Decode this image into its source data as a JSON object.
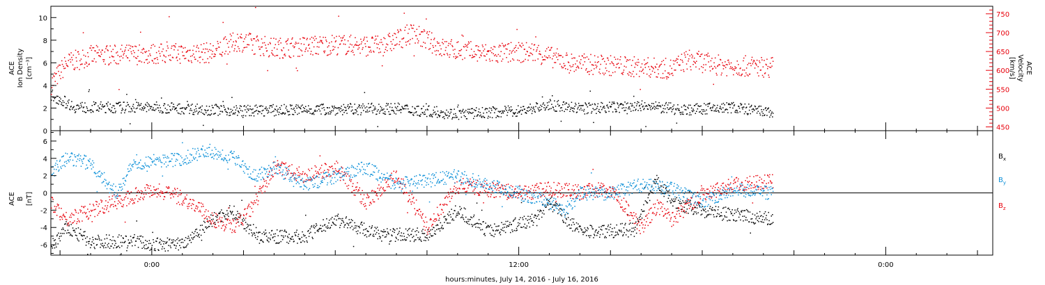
{
  "colors": {
    "black": "#000000",
    "red": "#e8000b",
    "blue": "#0a8fd8"
  },
  "x_axis": {
    "label": "hours:minutes, July 14, 2016 - July 16, 2016",
    "ticks": [
      {
        "t": 0,
        "label": "0:00"
      },
      {
        "t": 12,
        "label": "12:00"
      },
      {
        "t": 24,
        "label": "0:00"
      }
    ],
    "range": [
      -3.3,
      27.5
    ]
  },
  "chart_data": [
    {
      "type": "scatter",
      "panel": "top",
      "left_axis": {
        "label_lines": [
          "ACE",
          "Ion Density",
          "[cm⁻³]"
        ],
        "ylim": [
          0,
          11
        ],
        "ticks": [
          0,
          2,
          4,
          6,
          8,
          10
        ]
      },
      "right_axis": {
        "label_lines": [
          "ACE",
          "Velocity",
          "[km/s]"
        ],
        "ylim": [
          440,
          770
        ],
        "ticks": [
          450,
          500,
          550,
          600,
          650,
          700,
          750
        ]
      },
      "series": [
        {
          "key": "density",
          "axis": "left",
          "color": "#000000",
          "x_range": [
            -3.3,
            20.3
          ],
          "segments": [
            [
              -3.3,
              3.2
            ],
            [
              -2.5,
              2.1
            ],
            [
              0,
              2.1
            ],
            [
              3,
              1.8
            ],
            [
              5,
              1.9
            ],
            [
              8,
              2.0
            ],
            [
              10,
              1.5
            ],
            [
              12,
              1.8
            ],
            [
              13,
              2.3
            ],
            [
              14,
              2.0
            ],
            [
              16,
              2.2
            ],
            [
              17.5,
              1.9
            ],
            [
              19,
              2.1
            ],
            [
              20.3,
              1.6
            ]
          ]
        },
        {
          "key": "velocity",
          "axis": "right",
          "color": "#e8000b",
          "x_range": [
            -3.3,
            20.3
          ],
          "segments": [
            [
              -3.3,
              565
            ],
            [
              -2.8,
              620
            ],
            [
              -2,
              640
            ],
            [
              0,
              645
            ],
            [
              2,
              648
            ],
            [
              2.8,
              680
            ],
            [
              4,
              660
            ],
            [
              6,
              670
            ],
            [
              7.5,
              665
            ],
            [
              8.5,
              700
            ],
            [
              9.5,
              660
            ],
            [
              11,
              645
            ],
            [
              12.5,
              650
            ],
            [
              13.7,
              620
            ],
            [
              17,
              605
            ],
            [
              17.5,
              630
            ],
            [
              18.5,
              615
            ],
            [
              20.3,
              610
            ]
          ]
        }
      ]
    },
    {
      "type": "scatter",
      "panel": "bottom",
      "left_axis": {
        "label_lines": [
          "ACE",
          "B",
          "[nT]"
        ],
        "ylim": [
          -7.2,
          7.2
        ],
        "ticks": [
          -6,
          -4,
          -2,
          0,
          2,
          4,
          6
        ]
      },
      "zero_line": true,
      "series": [
        {
          "name": "Bx",
          "label_main": "B",
          "label_sub": "x",
          "color": "#000000",
          "x_range": [
            -3.3,
            20.3
          ],
          "segments": [
            [
              -3.3,
              -6.2
            ],
            [
              -2.8,
              -4
            ],
            [
              -2,
              -5.6
            ],
            [
              -0.5,
              -5.5
            ],
            [
              0,
              -6
            ],
            [
              1,
              -5.8
            ],
            [
              2,
              -3
            ],
            [
              2.6,
              -2
            ],
            [
              3.5,
              -5
            ],
            [
              5,
              -5
            ],
            [
              6,
              -3
            ],
            [
              6.8,
              -4
            ],
            [
              7.5,
              -4.8
            ],
            [
              9,
              -4.8
            ],
            [
              10,
              -2
            ],
            [
              11,
              -4.4
            ],
            [
              12.5,
              -3
            ],
            [
              13,
              -1
            ],
            [
              14,
              -4.5
            ],
            [
              15.8,
              -4.2
            ],
            [
              16.5,
              1.5
            ],
            [
              17,
              -1
            ],
            [
              18,
              -2
            ],
            [
              19,
              -2.5
            ],
            [
              20.3,
              -3
            ]
          ]
        },
        {
          "name": "By",
          "label_main": "B",
          "label_sub": "y",
          "color": "#0a8fd8",
          "x_range": [
            -3.3,
            20.3
          ],
          "segments": [
            [
              -3.3,
              2.5
            ],
            [
              -2.8,
              4
            ],
            [
              -2,
              3.5
            ],
            [
              -1.2,
              0
            ],
            [
              -0.6,
              3.5
            ],
            [
              1,
              4
            ],
            [
              1.8,
              5
            ],
            [
              2.8,
              4
            ],
            [
              3.3,
              2
            ],
            [
              4,
              3
            ],
            [
              5,
              1
            ],
            [
              6,
              2
            ],
            [
              7,
              3
            ],
            [
              8,
              1
            ],
            [
              9,
              1.5
            ],
            [
              10,
              2
            ],
            [
              11,
              1
            ],
            [
              12,
              0
            ],
            [
              13,
              -1
            ],
            [
              13.5,
              -2
            ],
            [
              14,
              0
            ],
            [
              15,
              0
            ],
            [
              16,
              1
            ],
            [
              17,
              0.5
            ],
            [
              18,
              -1
            ],
            [
              19,
              0.5
            ],
            [
              20.3,
              0
            ]
          ]
        },
        {
          "name": "Bz",
          "label_main": "B",
          "label_sub": "z",
          "color": "#e8000b",
          "x_range": [
            -3.3,
            20.3
          ],
          "segments": [
            [
              -3.3,
              -1
            ],
            [
              -2.8,
              -3
            ],
            [
              -2,
              -2
            ],
            [
              -1.2,
              -1
            ],
            [
              0,
              0.5
            ],
            [
              1,
              -0.5
            ],
            [
              2,
              -3
            ],
            [
              2.6,
              -4
            ],
            [
              3.2,
              -2
            ],
            [
              4,
              3
            ],
            [
              5,
              2
            ],
            [
              6,
              3
            ],
            [
              7,
              -1
            ],
            [
              8,
              2
            ],
            [
              9,
              -4
            ],
            [
              10,
              1
            ],
            [
              11,
              0.5
            ],
            [
              12,
              0
            ],
            [
              13,
              0.5
            ],
            [
              14,
              0.2
            ],
            [
              15,
              0.5
            ],
            [
              16,
              -4
            ],
            [
              16.5,
              -1.5
            ],
            [
              17,
              -3
            ],
            [
              18,
              0
            ],
            [
              19,
              1
            ],
            [
              20.3,
              1.5
            ]
          ]
        }
      ]
    }
  ]
}
